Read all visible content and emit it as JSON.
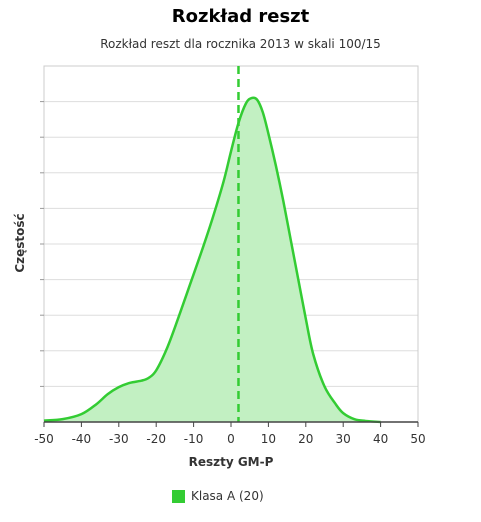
{
  "chart_data": {
    "type": "area",
    "title": "Rozkład reszt",
    "subtitle": "Rozkład reszt dla rocznika 2013 w skali 100/15",
    "xlabel": "Reszty GM-P",
    "ylabel": "Częstość",
    "xlim": [
      -50,
      50
    ],
    "ylim": [
      0,
      1
    ],
    "x_ticks": [
      -50,
      -40,
      -30,
      -20,
      -10,
      0,
      10,
      20,
      30,
      40,
      50
    ],
    "x_tick_labels": [
      "-50",
      "-40",
      "-30",
      "-20",
      "-10",
      "0",
      "10",
      "20",
      "30",
      "40",
      "50"
    ],
    "y_tick_count": 10,
    "grid": true,
    "legend_position": "bottom",
    "reference_line": {
      "x": 2,
      "style": "dashed"
    },
    "series": [
      {
        "name": "Klasa A (20)",
        "color": "#33cc33",
        "fill_color": "#c2f0c2",
        "x": [
          -50,
          -45,
          -40,
          -36,
          -33,
          -30,
          -27,
          -24,
          -22,
          -20,
          -17,
          -14,
          -11,
          -8,
          -5,
          -2,
          0,
          2,
          4,
          5.5,
          7,
          8.5,
          10,
          12,
          14,
          16,
          18,
          20,
          22,
          25,
          28,
          30,
          33,
          36,
          40
        ],
        "y": [
          0.004,
          0.008,
          0.022,
          0.05,
          0.078,
          0.098,
          0.11,
          0.116,
          0.124,
          0.145,
          0.21,
          0.295,
          0.385,
          0.475,
          0.57,
          0.675,
          0.76,
          0.84,
          0.895,
          0.91,
          0.905,
          0.87,
          0.81,
          0.72,
          0.62,
          0.51,
          0.4,
          0.29,
          0.19,
          0.1,
          0.05,
          0.025,
          0.008,
          0.003,
          0.0
        ]
      }
    ]
  }
}
